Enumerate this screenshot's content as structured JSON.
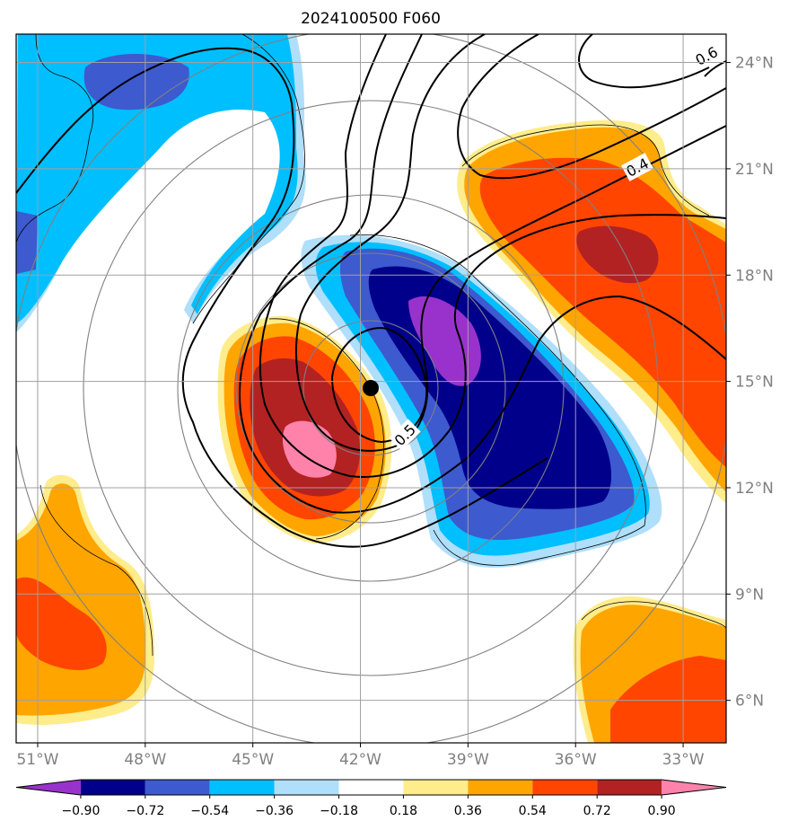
{
  "chart_data": {
    "type": "heatmap",
    "title": "2024100500 F060",
    "projection": "lon-lat map",
    "lon_range": [
      -51.6,
      -31.8
    ],
    "lat_range": [
      4.8,
      24.8
    ],
    "x_ticks": [
      -51,
      -48,
      -45,
      -42,
      -39,
      -36,
      -33
    ],
    "x_tick_labels": [
      "51°W",
      "48°W",
      "45°W",
      "42°W",
      "39°W",
      "36°W",
      "33°W"
    ],
    "y_ticks": [
      6,
      9,
      12,
      15,
      18,
      21,
      24
    ],
    "y_tick_labels": [
      "6°N",
      "9°N",
      "12°N",
      "15°N",
      "18°N",
      "21°N",
      "24°N"
    ],
    "grid": true,
    "center": {
      "lon": -41.6,
      "lat": 14.7,
      "marker": "black-dot"
    },
    "range_rings": [
      2,
      4,
      6,
      8,
      10
    ],
    "colorbar": {
      "orientation": "horizontal",
      "extend": "both",
      "levels": [
        -0.9,
        -0.72,
        -0.54,
        -0.36,
        -0.18,
        0.18,
        0.36,
        0.54,
        0.72,
        0.9
      ],
      "tick_labels": [
        "−0.90",
        "−0.72",
        "−0.54",
        "−0.36",
        "−0.18",
        "0.18",
        "0.36",
        "0.54",
        "0.72",
        "0.90"
      ],
      "colors": [
        "#9932cc",
        "#00008b",
        "#3d5acf",
        "#00bfff",
        "#afdffa",
        "#ffffff",
        "#ffec8b",
        "#ffa500",
        "#ff4500",
        "#b22222",
        "#ff82ab"
      ]
    },
    "contour_labels": [
      "0.6",
      "0.4",
      "0.5"
    ],
    "shaded_features": [
      {
        "name": "negative-lobe-east",
        "lon": -38.5,
        "lat": 14.5,
        "min_level": -0.9
      },
      {
        "name": "positive-lobe-west",
        "lon": -43.5,
        "lat": 13.8,
        "max_level": 0.9
      },
      {
        "name": "positive-band-northeast",
        "lon": -34.5,
        "lat": 18.5,
        "max_level": 0.72
      },
      {
        "name": "negative-band-northwest",
        "lon": -49.0,
        "lat": 22.0,
        "min_level": -0.54
      },
      {
        "name": "positive-patch-southwest",
        "lon": -50.5,
        "lat": 8.0,
        "max_level": 0.54
      },
      {
        "name": "positive-patch-southeast",
        "lon": -34.0,
        "lat": 6.5,
        "max_level": 0.54
      }
    ]
  }
}
